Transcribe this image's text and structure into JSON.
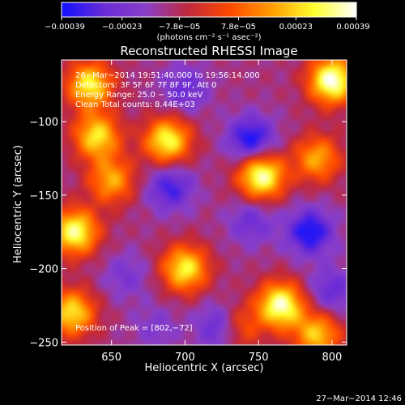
{
  "chart_data": {
    "type": "heatmap",
    "title": "Reconstructed RHESSI Image",
    "xlabel": "Heliocentric X (arcsec)",
    "ylabel": "Heliocentric Y (arcsec)",
    "xlim": [
      616,
      810
    ],
    "ylim": [
      -252,
      -58
    ],
    "x_ticks": [
      650,
      700,
      750,
      800
    ],
    "y_ticks": [
      -100,
      -150,
      -200,
      -250
    ],
    "x_tick_labels": [
      "650",
      "700",
      "750",
      "800"
    ],
    "y_tick_labels": [
      "−100",
      "−150",
      "−200",
      "−250"
    ],
    "colorbar": {
      "range": [
        -0.00039,
        0.00039
      ],
      "ticks": [
        -0.00039,
        -0.00023,
        -7.8e-05,
        7.8e-05,
        0.00023,
        0.00039
      ],
      "tick_labels": [
        "−0.00039",
        "−0.00023",
        "−7.8e−05",
        "7.8e−05",
        "0.00023",
        "0.00039"
      ],
      "unit": "(photons cm⁻² s⁻¹ asec⁻²)",
      "colors": [
        "#1010ff",
        "#6a2bd6",
        "#8a3fc8",
        "#c0283c",
        "#ff4a00",
        "#ff9d00",
        "#ffff30",
        "#ffffff"
      ]
    },
    "annotations": [
      "26−Mar−2014 19:51:40.000 to 19:56:14.000",
      "Detectors: 3F 5F 6F 7F 8F 9F, Att 0",
      "Energy Range: 25.0 − 50.0 keV",
      "Clean    Total counts: 8.44E+03"
    ],
    "peak_label": "Position of Peak = [802,−72]",
    "blobs": [
      {
        "x": 635,
        "y": -75,
        "v": 0.00028
      },
      {
        "x": 800,
        "y": -72,
        "v": 0.00039
      },
      {
        "x": 640,
        "y": -110,
        "v": 0.00026
      },
      {
        "x": 688,
        "y": -113,
        "v": 0.0003
      },
      {
        "x": 650,
        "y": -140,
        "v": 0.00018
      },
      {
        "x": 752,
        "y": -137,
        "v": 0.00036
      },
      {
        "x": 790,
        "y": -125,
        "v": 0.00018
      },
      {
        "x": 625,
        "y": -175,
        "v": 0.00033
      },
      {
        "x": 700,
        "y": -200,
        "v": 0.00028
      },
      {
        "x": 623,
        "y": -230,
        "v": 0.00026
      },
      {
        "x": 765,
        "y": -225,
        "v": 0.00036
      },
      {
        "x": 790,
        "y": -245,
        "v": 0.00022
      },
      {
        "x": 735,
        "y": -240,
        "v": 0.00014
      },
      {
        "x": 745,
        "y": -112,
        "v": -0.00039
      },
      {
        "x": 690,
        "y": -145,
        "v": -0.00033
      },
      {
        "x": 700,
        "y": -78,
        "v": -0.00027
      },
      {
        "x": 785,
        "y": -175,
        "v": -0.00039
      },
      {
        "x": 745,
        "y": -168,
        "v": -0.00026
      },
      {
        "x": 725,
        "y": -240,
        "v": -0.00037
      },
      {
        "x": 660,
        "y": -205,
        "v": -0.00022
      },
      {
        "x": 800,
        "y": -215,
        "v": -0.00028
      },
      {
        "x": 680,
        "y": -240,
        "v": -0.0002
      }
    ]
  },
  "footer_timestamp": "27−Mar−2014 12:46"
}
